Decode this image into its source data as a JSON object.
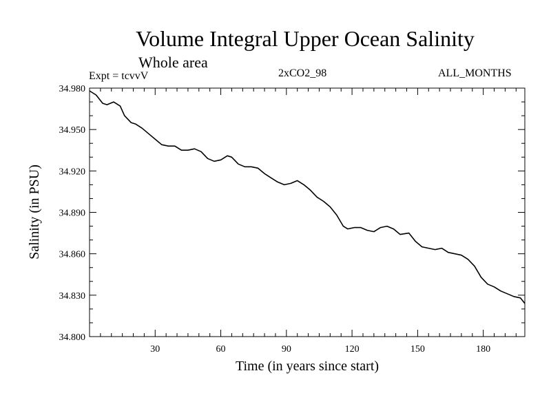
{
  "header": {
    "title": "Volume Integral Upper Ocean Salinity",
    "subtitle": "Whole area",
    "experiment": "Expt = tcvvV",
    "run": "2xCO2_98",
    "months": "ALL_MONTHS"
  },
  "chart_data": {
    "type": "line",
    "title": "Volume Integral Upper Ocean Salinity",
    "subtitle": "Whole area",
    "xlabel": "Time (in years since start)",
    "ylabel": "Salinity (in PSU)",
    "xlim": [
      0,
      199
    ],
    "ylim": [
      34.8,
      34.98
    ],
    "xticks": [
      30,
      60,
      90,
      120,
      150,
      180
    ],
    "xtick_labels": [
      "30",
      "60",
      "90",
      "120",
      "150",
      "180"
    ],
    "yticks": [
      34.8,
      34.83,
      34.86,
      34.89,
      34.92,
      34.95,
      34.98
    ],
    "ytick_labels": [
      "34.800",
      "34.830",
      "34.860",
      "34.890",
      "34.920",
      "34.950",
      "34.980"
    ],
    "grid": false,
    "series": [
      {
        "color": "#000000",
        "x": [
          0,
          3,
          6,
          8,
          11,
          14,
          16,
          19,
          21,
          24,
          27,
          30,
          33,
          36,
          39,
          42,
          45,
          48,
          51,
          54,
          57,
          60,
          63,
          65,
          68,
          71,
          74,
          77,
          80,
          83,
          86,
          89,
          92,
          95,
          98,
          101,
          104,
          107,
          110,
          113,
          116,
          118,
          121,
          124,
          127,
          130,
          133,
          136,
          139,
          142,
          146,
          149,
          152,
          155,
          158,
          161,
          164,
          167,
          170,
          173,
          176,
          179,
          182,
          185,
          188,
          191,
          194,
          197,
          199
        ],
        "y": [
          34.978,
          34.975,
          34.969,
          34.968,
          34.97,
          34.967,
          34.96,
          34.955,
          34.954,
          34.951,
          34.947,
          34.943,
          34.939,
          34.938,
          34.938,
          34.935,
          34.935,
          34.936,
          34.934,
          34.929,
          34.927,
          34.928,
          34.931,
          34.93,
          34.925,
          34.923,
          34.923,
          34.922,
          34.918,
          34.915,
          34.912,
          34.91,
          34.911,
          34.913,
          34.91,
          34.906,
          34.901,
          34.898,
          34.894,
          34.888,
          34.88,
          34.878,
          34.879,
          34.879,
          34.877,
          34.876,
          34.879,
          34.88,
          34.878,
          34.874,
          34.875,
          34.869,
          34.865,
          34.864,
          34.863,
          34.864,
          34.861,
          34.86,
          34.859,
          34.856,
          34.851,
          34.843,
          34.838,
          34.836,
          34.833,
          34.831,
          34.829,
          34.828,
          34.824
        ]
      }
    ]
  }
}
